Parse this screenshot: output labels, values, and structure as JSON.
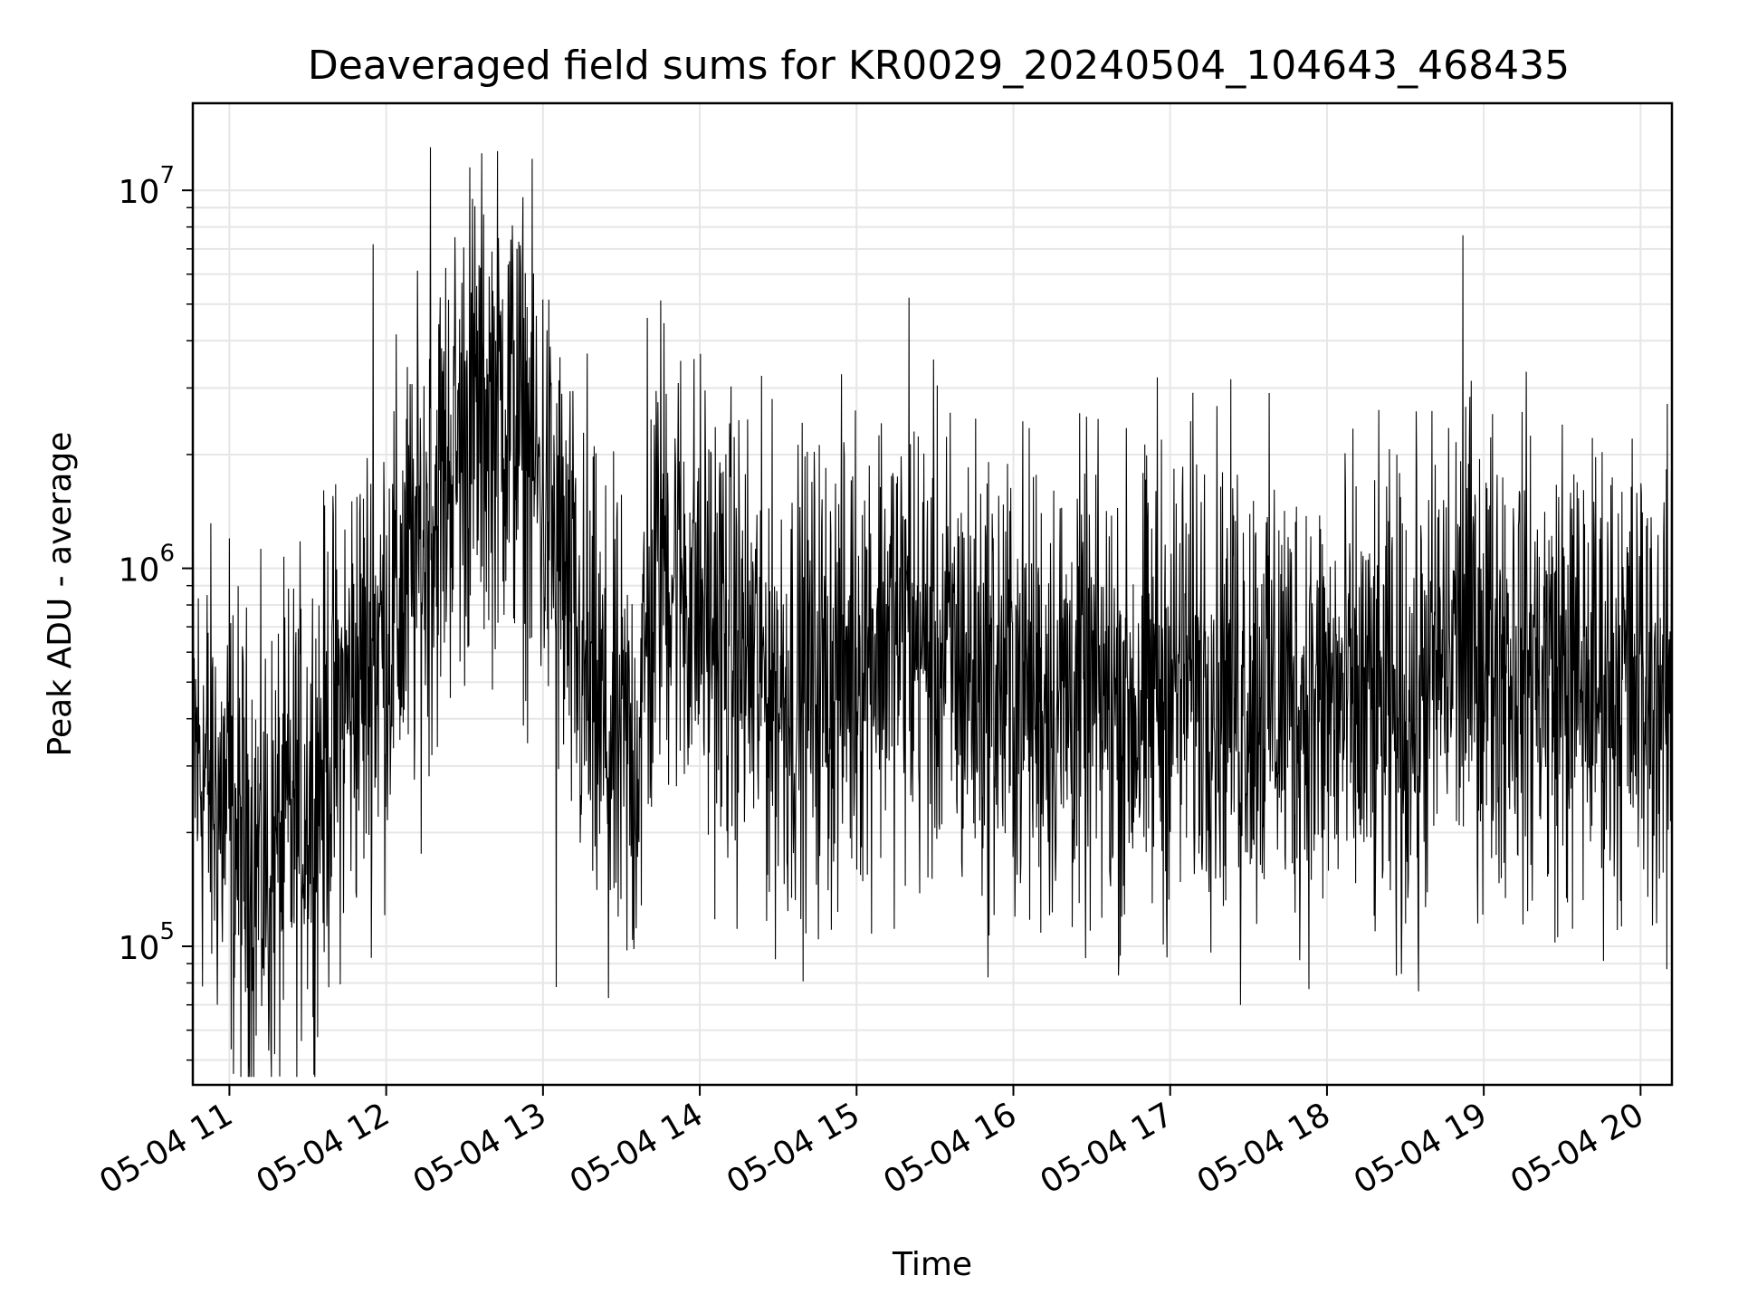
{
  "chart_data": {
    "type": "line",
    "title": "Deaveraged field sums for KR0029_20240504_104643_468435",
    "xlabel": "Time",
    "ylabel": "Peak ADU - average",
    "yscale": "log",
    "ylim": [
      43000,
      17000000
    ],
    "xlim": [
      "05-04 10:46",
      "05-04 20:12"
    ],
    "grid": true,
    "line_color": "#000000",
    "x_ticks": [
      "05-04 11",
      "05-04 12",
      "05-04 13",
      "05-04 14",
      "05-04 15",
      "05-04 16",
      "05-04 17",
      "05-04 18",
      "05-04 19",
      "05-04 20"
    ],
    "y_ticks": [
      {
        "base": "10",
        "exp": "5",
        "value": 100000
      },
      {
        "base": "10",
        "exp": "6",
        "value": 1000000
      },
      {
        "base": "10",
        "exp": "7",
        "value": 10000000
      }
    ],
    "series": [
      {
        "x": [
          "05-04 10:46",
          "05-04 10:55",
          "05-04 11:05",
          "05-04 11:15",
          "05-04 11:25",
          "05-04 11:35",
          "05-04 11:45",
          "05-04 11:55",
          "05-04 12:05",
          "05-04 12:15",
          "05-04 12:25",
          "05-04 12:35",
          "05-04 12:45",
          "05-04 12:55",
          "05-04 13:05",
          "05-04 13:15",
          "05-04 13:25",
          "05-04 13:35",
          "05-04 13:45",
          "05-04 13:55",
          "05-04 14:10",
          "05-04 14:30",
          "05-04 14:50",
          "05-04 15:10",
          "05-04 15:30",
          "05-04 15:50",
          "05-04 16:10",
          "05-04 16:30",
          "05-04 16:50",
          "05-04 17:10",
          "05-04 17:30",
          "05-04 17:50",
          "05-04 18:10",
          "05-04 18:30",
          "05-04 18:50",
          "05-04 19:10",
          "05-04 19:30",
          "05-04 19:50",
          "05-04 20:10"
        ],
        "typical": [
          330000,
          250000,
          180000,
          160000,
          220000,
          300000,
          450000,
          600000,
          800000,
          1200000,
          2000000,
          2500000,
          2800000,
          2000000,
          1200000,
          500000,
          350000,
          300000,
          1200000,
          900000,
          650000,
          480000,
          520000,
          700000,
          600000,
          500000,
          480000,
          450000,
          430000,
          550000,
          500000,
          450000,
          420000,
          400000,
          650000,
          600000,
          500000,
          520000,
          480000
        ],
        "peaks": [
          {
            "x": "05-04 11:00",
            "value": 1200000
          },
          {
            "x": "05-04 11:55",
            "value": 7200000
          },
          {
            "x": "05-04 12:17",
            "value": 13000000
          },
          {
            "x": "05-04 12:32",
            "value": 11500000
          },
          {
            "x": "05-04 12:50",
            "value": 7000000
          },
          {
            "x": "05-04 13:17",
            "value": 3700000
          },
          {
            "x": "05-04 13:40",
            "value": 4600000
          },
          {
            "x": "05-04 15:20",
            "value": 5200000
          },
          {
            "x": "05-04 16:55",
            "value": 3200000
          },
          {
            "x": "05-04 18:52",
            "value": 7600000
          },
          {
            "x": "05-04 19:30",
            "value": 2400000
          }
        ],
        "troughs": [
          {
            "x": "05-04 11:15",
            "value": 53000
          },
          {
            "x": "05-04 11:32",
            "value": 65000
          },
          {
            "x": "05-04 13:05",
            "value": 78000
          },
          {
            "x": "05-04 13:25",
            "value": 73000
          },
          {
            "x": "05-04 17:27",
            "value": 70000
          },
          {
            "x": "05-04 18:35",
            "value": 76000
          },
          {
            "x": "05-04 20:10",
            "value": 87000
          }
        ]
      }
    ]
  }
}
